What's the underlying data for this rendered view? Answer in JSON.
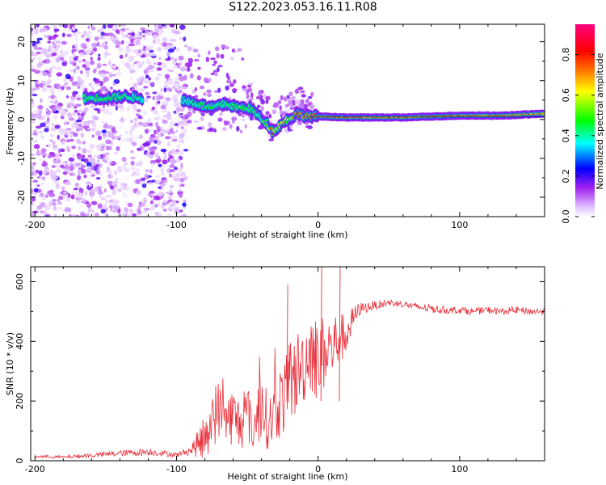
{
  "title": "S122.2023.053.16.11.R08",
  "chart_data": [
    {
      "type": "heatmap",
      "xlabel": "Height of straight line (km)",
      "ylabel": "Frequency (Hz)",
      "xlim": [
        -203,
        160
      ],
      "ylim": [
        -25,
        24.5
      ],
      "xticks": [
        -200,
        -100,
        0,
        100
      ],
      "yticks": [
        20,
        10,
        0,
        -10,
        -20
      ],
      "colorbar": {
        "label": "Normalized spectral amplitude",
        "range": [
          0.0,
          0.95
        ],
        "ticks": [
          0.0,
          0.2,
          0.4,
          0.6,
          0.8
        ],
        "colors": [
          "#ffffff",
          "#a020f0",
          "#0000ff",
          "#00ffff",
          "#00ff00",
          "#ffff00",
          "#ff8000",
          "#ff0000",
          "#ff0080"
        ]
      },
      "ridge": {
        "x": [
          -165,
          -150,
          -135,
          -125,
          -95,
          -85,
          -75,
          -65,
          -55,
          -48,
          -42,
          -36,
          -32,
          -28,
          -24,
          -20,
          -15,
          -10,
          -5,
          0,
          20,
          60,
          100,
          130,
          160
        ],
        "freq": [
          5.5,
          5.5,
          6,
          5.5,
          5,
          4,
          3,
          4,
          3,
          3,
          1,
          -1,
          -3,
          -2,
          -0.5,
          0,
          1.5,
          1,
          0.8,
          0.8,
          0.5,
          0.5,
          1,
          1,
          1.5
        ],
        "peak_amplitude": [
          0.45,
          0.5,
          0.45,
          0.4,
          0.4,
          0.45,
          0.5,
          0.45,
          0.5,
          0.5,
          0.4,
          0.55,
          0.8,
          0.6,
          0.7,
          0.6,
          0.8,
          0.75,
          0.8,
          0.85,
          0.85,
          0.8,
          0.85,
          0.8,
          0.8
        ]
      }
    },
    {
      "type": "line",
      "xlabel": "Height of straight line (km)",
      "ylabel": "SNR (10 * v/v)",
      "xlim": [
        -203,
        160
      ],
      "ylim": [
        0,
        650
      ],
      "xticks": [
        -200,
        -100,
        0,
        100
      ],
      "yticks": [
        0,
        200,
        400,
        600
      ],
      "color": "#e8303a",
      "x": [
        -200,
        -180,
        -160,
        -140,
        -120,
        -100,
        -90,
        -80,
        -75,
        -70,
        -65,
        -60,
        -55,
        -50,
        -45,
        -40,
        -35,
        -30,
        -25,
        -20,
        -15,
        -10,
        -5,
        0,
        5,
        10,
        15,
        20,
        25,
        30,
        40,
        50,
        60,
        70,
        80,
        90,
        100,
        110,
        120,
        130,
        140,
        150,
        160
      ],
      "y": [
        15,
        12,
        18,
        25,
        30,
        20,
        35,
        80,
        150,
        170,
        140,
        150,
        120,
        160,
        110,
        190,
        120,
        170,
        210,
        230,
        300,
        320,
        380,
        330,
        370,
        380,
        410,
        420,
        480,
        510,
        520,
        530,
        525,
        515,
        510,
        505,
        505,
        500,
        505,
        500,
        505,
        500,
        500
      ],
      "spread": [
        5,
        5,
        8,
        10,
        12,
        8,
        15,
        80,
        110,
        100,
        90,
        100,
        90,
        100,
        90,
        120,
        90,
        110,
        130,
        140,
        140,
        130,
        150,
        140,
        130,
        120,
        90,
        70,
        40,
        20,
        15,
        12,
        12,
        12,
        15,
        12,
        12,
        12,
        12,
        12,
        12,
        12,
        12
      ]
    }
  ]
}
